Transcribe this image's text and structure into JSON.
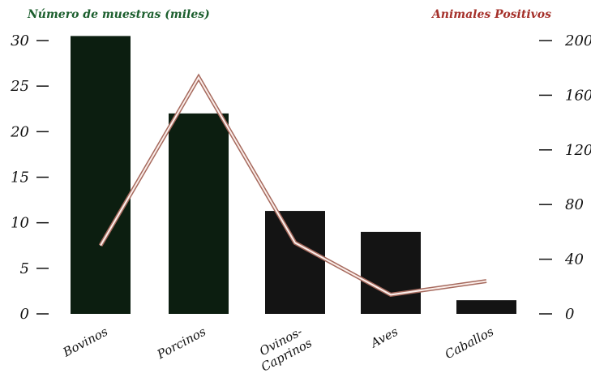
{
  "chart_data": {
    "type": "bar",
    "title": "",
    "xlabel": "",
    "ylabel": "Número de muestras (miles)",
    "y2label": "Animales Positivos",
    "categories": [
      "Bovinos",
      "Porcinos",
      "Ovinos-Caprinos",
      "Aves",
      "Caballos"
    ],
    "category_label_lines": [
      [
        "Bovinos"
      ],
      [
        "Porcinos"
      ],
      [
        "Ovinos-",
        "Caprinos"
      ],
      [
        "Aves"
      ],
      [
        "Caballos"
      ]
    ],
    "ylim": [
      0,
      30
    ],
    "y_ticks": [
      0,
      5,
      10,
      15,
      20,
      25,
      30
    ],
    "y2lim": [
      0,
      200
    ],
    "y2_ticks": [
      0,
      40,
      80,
      120,
      160,
      200
    ],
    "grid": false,
    "series": [
      {
        "type": "bar",
        "axis": "left",
        "values": [
          30.5,
          22,
          11.3,
          9,
          1.5
        ]
      },
      {
        "type": "line",
        "axis": "right",
        "values": [
          50,
          173,
          52,
          14,
          24
        ]
      }
    ],
    "colors": {
      "bar_dark": "#0c1e10",
      "bar_black": "#141414",
      "line_outer": "#a66a5e",
      "line_inner": "#fbeeea",
      "left_title": "#1b5e2d",
      "right_title": "#a5302a"
    }
  }
}
